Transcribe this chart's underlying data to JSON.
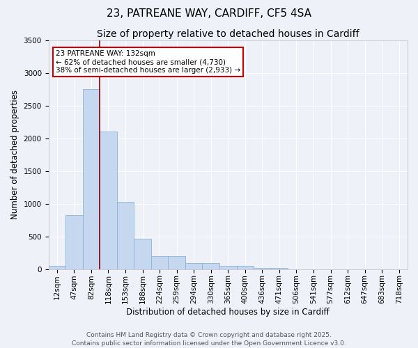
{
  "title_line1": "23, PATREANE WAY, CARDIFF, CF5 4SA",
  "title_line2": "Size of property relative to detached houses in Cardiff",
  "xlabel": "Distribution of detached houses by size in Cardiff",
  "ylabel": "Number of detached properties",
  "categories": [
    "12sqm",
    "47sqm",
    "82sqm",
    "118sqm",
    "153sqm",
    "188sqm",
    "224sqm",
    "259sqm",
    "294sqm",
    "330sqm",
    "365sqm",
    "400sqm",
    "436sqm",
    "471sqm",
    "506sqm",
    "541sqm",
    "577sqm",
    "612sqm",
    "647sqm",
    "683sqm",
    "718sqm"
  ],
  "values": [
    55,
    830,
    2750,
    2100,
    1030,
    460,
    200,
    200,
    95,
    95,
    55,
    55,
    20,
    20,
    0,
    0,
    0,
    0,
    0,
    0,
    0
  ],
  "bar_color": "#c5d8ef",
  "bar_edge_color": "#8ab4d8",
  "vline_color": "#8b0000",
  "vline_x_index": 3,
  "annotation_text": "23 PATREANE WAY: 132sqm\n← 62% of detached houses are smaller (4,730)\n38% of semi-detached houses are larger (2,933) →",
  "annotation_box_edgecolor": "#cc0000",
  "ylim": [
    0,
    3500
  ],
  "yticks": [
    0,
    500,
    1000,
    1500,
    2000,
    2500,
    3000,
    3500
  ],
  "background_color": "#eef2f8",
  "grid_color": "#ffffff",
  "footer_line1": "Contains HM Land Registry data © Crown copyright and database right 2025.",
  "footer_line2": "Contains public sector information licensed under the Open Government Licence v3.0.",
  "title1_fontsize": 11,
  "title2_fontsize": 10,
  "axis_label_fontsize": 8.5,
  "tick_fontsize": 7.5,
  "annotation_fontsize": 7.5,
  "footer_fontsize": 6.5
}
